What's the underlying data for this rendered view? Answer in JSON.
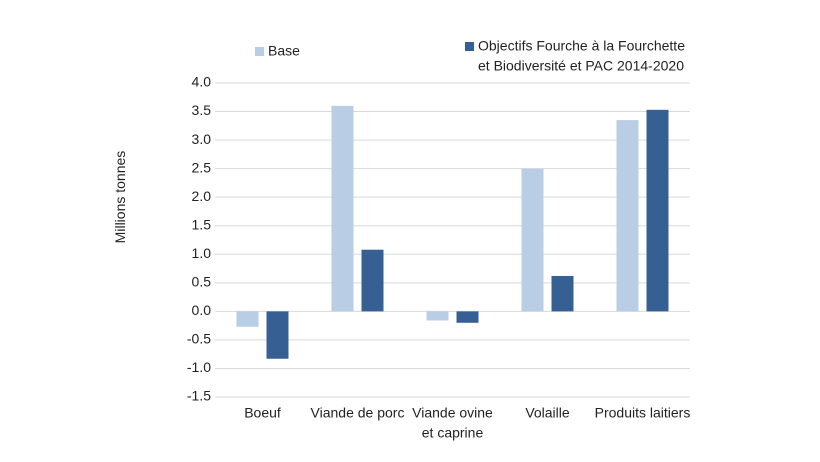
{
  "chart_data": {
    "type": "bar",
    "y_label": "Millions tonnes",
    "categories": [
      "Boeuf",
      "Viande de porc",
      [
        "Viande ovine",
        "et caprine"
      ],
      "Volaille",
      "Produits laitiers"
    ],
    "series": [
      {
        "name": "Base",
        "color": "#b9cee5",
        "values": [
          -0.27,
          3.6,
          -0.16,
          2.5,
          3.35
        ]
      },
      {
        "name": [
          "Objectifs Fourche à la Fourchette",
          "et Biodiversité et PAC 2014-2020"
        ],
        "color": "#365f94",
        "values": [
          -0.83,
          1.08,
          -0.2,
          0.62,
          3.53
        ]
      }
    ],
    "ylim": [
      -1.5,
      4.0
    ],
    "yticks": [
      {
        "value": -1.5,
        "label": "-1.5"
      },
      {
        "value": -1.0,
        "label": "-1.0"
      },
      {
        "value": -0.5,
        "label": "-0.5"
      },
      {
        "value": 0,
        "label": "0.0"
      },
      {
        "value": 0.5,
        "label": "0.5"
      },
      {
        "value": 1.0,
        "label": "1.0"
      },
      {
        "value": 1.5,
        "label": "1.5"
      },
      {
        "value": 2.0,
        "label": "2.0"
      },
      {
        "value": 2.5,
        "label": "2.5"
      },
      {
        "value": 3.0,
        "label": "3.0"
      },
      {
        "value": 3.5,
        "label": "3.5"
      },
      {
        "value": 4.0,
        "label": "4.0"
      }
    ],
    "grid": true
  }
}
